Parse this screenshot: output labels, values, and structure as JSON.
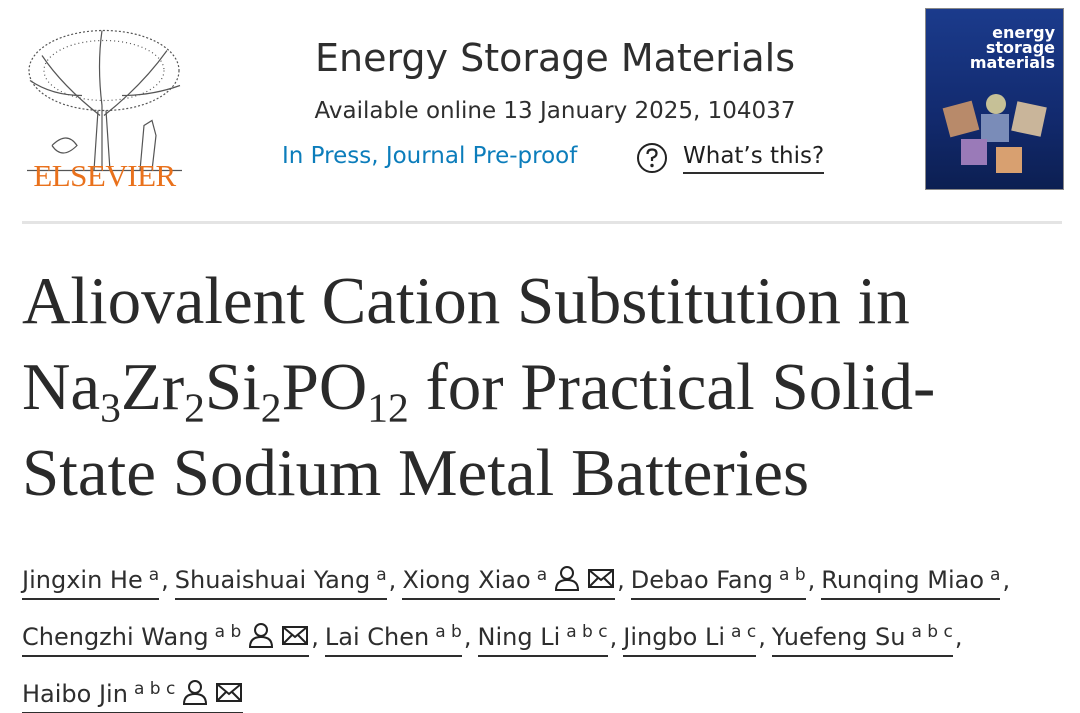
{
  "header": {
    "publisher": "ELSEVIER",
    "journal": "Energy Storage Materials",
    "availability": "Available online 13 January 2025, 104037",
    "status": "In Press, Journal Pre-proof",
    "help": "What’s this?",
    "cover": {
      "title": "energy storage materials"
    }
  },
  "article": {
    "title": [
      "Aliovalent Cation Substitution in Na",
      {
        "sub": "3"
      },
      "Zr",
      {
        "sub": "2"
      },
      "Si",
      {
        "sub": "2"
      },
      "PO",
      {
        "sub": "12"
      },
      " for Practical Solid-State Sodium Metal Batteries"
    ],
    "author_separator": ",",
    "authors": [
      {
        "name": "Jingxin He",
        "affiliations": "a"
      },
      {
        "name": "Shuaishuai Yang",
        "affiliations": "a"
      },
      {
        "name": "Xiong Xiao",
        "affiliations": "a",
        "corresponding": true
      },
      {
        "name": "Debao Fang",
        "affiliations": "a b"
      },
      {
        "name": "Runqing Miao",
        "affiliations": "a"
      },
      {
        "name": "Chengzhi Wang",
        "affiliations": "a b",
        "corresponding": true
      },
      {
        "name": "Lai Chen",
        "affiliations": "a b"
      },
      {
        "name": "Ning Li",
        "affiliations": "a b c"
      },
      {
        "name": "Jingbo Li",
        "affiliations": "a c"
      },
      {
        "name": "Yuefeng Su",
        "affiliations": "a b c"
      },
      {
        "name": "Haibo Jin",
        "affiliations": "a b c",
        "corresponding": true
      }
    ]
  }
}
